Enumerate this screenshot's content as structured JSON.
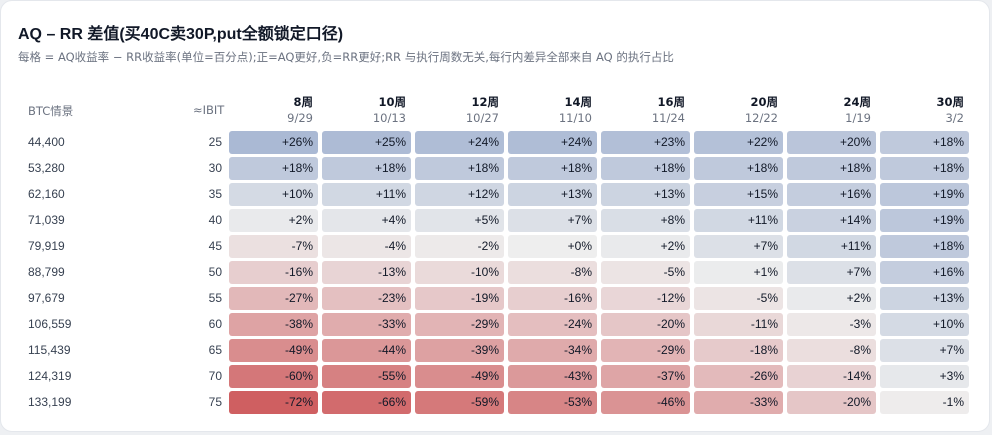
{
  "title": "AQ – RR 差值(买40C卖30P,put全额锁定口径)",
  "subtitle": "每格 = AQ收益率 − RR收益率(单位=百分点);正=AQ更好,负=RR更好;RR 与执行周数无关,每行内差异全部来自 AQ 的执行占比",
  "colors": {
    "positive": "#aab9d4",
    "negative": "#cf5f61",
    "neutral": "#eeeeee"
  },
  "chart_data": {
    "type": "heatmap",
    "row_header": "BTC情景",
    "row_header_2": "≈IBIT",
    "columns": [
      {
        "week": "8周",
        "date": "9/29"
      },
      {
        "week": "10周",
        "date": "10/13"
      },
      {
        "week": "12周",
        "date": "10/27"
      },
      {
        "week": "14周",
        "date": "11/10"
      },
      {
        "week": "16周",
        "date": "11/24"
      },
      {
        "week": "20周",
        "date": "12/22"
      },
      {
        "week": "24周",
        "date": "1/19"
      },
      {
        "week": "30周",
        "date": "3/2"
      }
    ],
    "rows": [
      {
        "btc": "44,400",
        "ibit": "25",
        "values": [
          26,
          25,
          24,
          24,
          23,
          22,
          20,
          18
        ]
      },
      {
        "btc": "53,280",
        "ibit": "30",
        "values": [
          18,
          18,
          18,
          18,
          18,
          18,
          18,
          18
        ]
      },
      {
        "btc": "62,160",
        "ibit": "35",
        "values": [
          10,
          11,
          12,
          13,
          13,
          15,
          16,
          19
        ]
      },
      {
        "btc": "71,039",
        "ibit": "40",
        "values": [
          2,
          4,
          5,
          7,
          8,
          11,
          14,
          19
        ]
      },
      {
        "btc": "79,919",
        "ibit": "45",
        "values": [
          -7,
          -4,
          -2,
          0,
          2,
          7,
          11,
          18
        ]
      },
      {
        "btc": "88,799",
        "ibit": "50",
        "values": [
          -16,
          -13,
          -10,
          -8,
          -5,
          1,
          7,
          16
        ]
      },
      {
        "btc": "97,679",
        "ibit": "55",
        "values": [
          -27,
          -23,
          -19,
          -16,
          -12,
          -5,
          2,
          13
        ]
      },
      {
        "btc": "106,559",
        "ibit": "60",
        "values": [
          -38,
          -33,
          -29,
          -24,
          -20,
          -11,
          -3,
          10
        ]
      },
      {
        "btc": "115,439",
        "ibit": "65",
        "values": [
          -49,
          -44,
          -39,
          -34,
          -29,
          -18,
          -8,
          7
        ]
      },
      {
        "btc": "124,319",
        "ibit": "70",
        "values": [
          -60,
          -55,
          -49,
          -43,
          -37,
          -26,
          -14,
          3
        ]
      },
      {
        "btc": "133,199",
        "ibit": "75",
        "values": [
          -72,
          -66,
          -59,
          -53,
          -46,
          -33,
          -20,
          -1
        ]
      }
    ],
    "color_scale": {
      "positive_max": 26,
      "negative_max": 72
    }
  }
}
